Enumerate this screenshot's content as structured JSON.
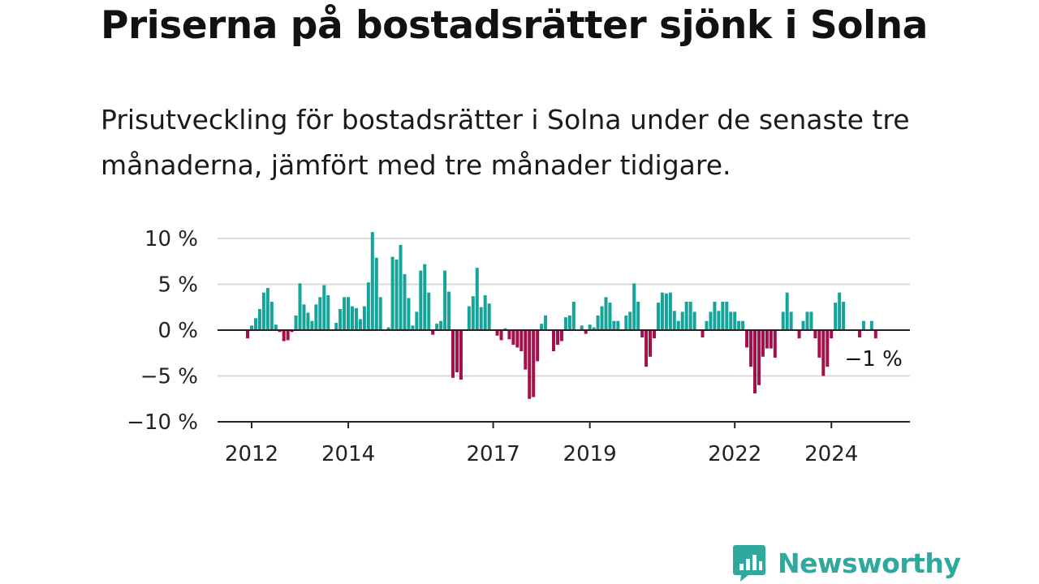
{
  "title": "Priserna på bostadsrätter sjönk i Solna",
  "subtitle": "Prisutveckling för bostadsrätter i Solna under de senaste tre månaderna, jämfört med tre månader tidigare.",
  "brand": {
    "name": "Newsworthy",
    "icon": "newsworthy-chart-bubble-icon",
    "color": "#2fa99d"
  },
  "colors": {
    "positive": "#14a49a",
    "negative": "#a3104a",
    "grid": "#d9d9d9",
    "axis": "#222222"
  },
  "chart_data": {
    "type": "bar",
    "x_start": "2011-12",
    "interval": "month",
    "ylim": [
      -10,
      10
    ],
    "yticks": [
      10,
      5,
      0,
      -5,
      -10
    ],
    "ytick_labels": [
      "10 %",
      "5 %",
      "0 %",
      "−5 %",
      "−10 %"
    ],
    "xticks": [
      {
        "date": "2012-01",
        "label": "2012"
      },
      {
        "date": "2014-01",
        "label": "2014"
      },
      {
        "date": "2017-01",
        "label": "2017"
      },
      {
        "date": "2019-01",
        "label": "2019"
      },
      {
        "date": "2022-01",
        "label": "2022"
      },
      {
        "date": "2024-01",
        "label": "2024"
      }
    ],
    "last_value_label": "−1 %",
    "grid": true,
    "values": [
      -0.9,
      0.5,
      1.3,
      2.3,
      4.1,
      4.6,
      3.1,
      0.6,
      -0.2,
      -1.2,
      -1.1,
      -0.2,
      1.6,
      5.1,
      2.8,
      1.9,
      1.0,
      2.8,
      3.6,
      4.9,
      3.8,
      0.0,
      0.8,
      2.3,
      3.6,
      3.6,
      2.6,
      2.4,
      1.2,
      2.6,
      5.2,
      10.7,
      7.9,
      3.6,
      0.0,
      0.3,
      8.0,
      7.7,
      9.3,
      6.1,
      3.5,
      0.5,
      2.0,
      6.5,
      7.2,
      4.1,
      -0.5,
      0.7,
      1.0,
      6.5,
      4.2,
      -5.2,
      -4.6,
      -5.4,
      0.0,
      2.6,
      3.7,
      6.8,
      2.5,
      3.8,
      2.9,
      0.0,
      -0.6,
      -1.1,
      0.2,
      -1.0,
      -1.6,
      -1.9,
      -2.3,
      -4.3,
      -7.5,
      -7.3,
      -3.4,
      0.7,
      1.6,
      0.0,
      -2.3,
      -1.6,
      -1.2,
      1.4,
      1.6,
      3.1,
      0.0,
      0.5,
      -0.4,
      0.6,
      0.3,
      1.6,
      2.6,
      3.6,
      3.0,
      1.0,
      1.0,
      0.1,
      1.6,
      2.0,
      5.1,
      3.1,
      -0.8,
      -4.0,
      -2.9,
      -0.9,
      3.0,
      4.1,
      4.0,
      4.1,
      2.1,
      1.0,
      2.0,
      3.1,
      3.1,
      2.0,
      0.0,
      -0.8,
      1.0,
      2.0,
      3.1,
      2.1,
      3.1,
      3.1,
      2.0,
      2.0,
      1.0,
      1.0,
      -1.9,
      -4.0,
      -6.9,
      -6.0,
      -2.9,
      -2.0,
      -2.0,
      -3.0,
      0.0,
      2.0,
      4.1,
      2.0,
      0.0,
      -0.9,
      1.0,
      2.0,
      2.0,
      -0.9,
      -3.0,
      -5.0,
      -4.0,
      -0.9,
      3.0,
      4.1,
      3.1,
      0.0,
      0.0,
      0.0,
      -0.8,
      1.0,
      0.0,
      1.0,
      -0.9
    ]
  }
}
